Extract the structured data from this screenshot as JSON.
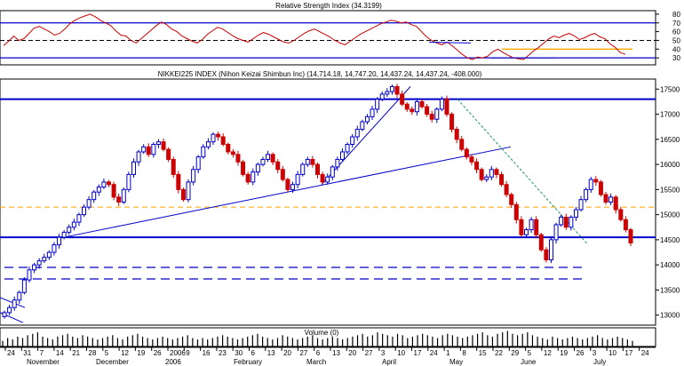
{
  "chart_data": [
    {
      "panel": "rsi",
      "type": "line",
      "title": "Relative Strength Index (34.3199)",
      "yticks": [
        30,
        40,
        50,
        60,
        70,
        80
      ],
      "ylim": [
        22,
        84
      ],
      "levels": [
        {
          "value": 70,
          "style": "solid",
          "color": "#0000cc"
        },
        {
          "value": 50,
          "style": "dashed",
          "color": "#000000"
        },
        {
          "value": 30,
          "style": "solid",
          "color": "#0000cc"
        },
        {
          "value": 40,
          "style": "solid",
          "color": "#ffa500"
        }
      ],
      "series": [
        {
          "color": "#cc0000",
          "values": [
            44,
            49,
            55,
            50,
            52,
            58,
            64,
            66,
            63,
            60,
            56,
            58,
            63,
            69,
            73,
            76,
            78,
            80,
            77,
            73,
            70,
            67,
            61,
            56,
            55,
            50,
            47,
            52,
            57,
            62,
            67,
            71,
            68,
            63,
            60,
            55,
            52,
            49,
            47,
            51,
            57,
            61,
            65,
            63,
            59,
            55,
            52,
            50,
            48,
            52,
            56,
            59,
            57,
            54,
            51,
            48,
            47,
            50,
            54,
            58,
            61,
            63,
            60,
            57,
            54,
            50,
            47,
            45,
            49,
            53,
            57,
            60,
            63,
            66,
            69,
            71,
            73,
            72,
            70,
            71,
            68,
            66,
            60,
            54,
            50,
            47,
            45,
            48,
            44,
            39,
            34,
            30,
            28,
            31,
            30,
            32,
            37,
            40,
            36,
            33,
            30,
            29,
            28,
            33,
            38,
            42,
            47,
            52,
            55,
            53,
            56,
            58,
            55,
            51,
            53,
            56,
            58,
            54,
            52,
            46,
            42,
            36,
            34
          ]
        }
      ]
    },
    {
      "panel": "price",
      "type": "candlestick",
      "title": "NIKKEI225 INDEX (Nihon Keizai Shimbun Inc) (14,714.18, 14,747.20, 14,437.24, 14,437.24, -408.000)",
      "yticks": [
        13000,
        13500,
        14000,
        14500,
        15000,
        15500,
        16000,
        16500,
        17000,
        17500
      ],
      "ylim": [
        12800,
        17700
      ],
      "xlabels_days": [
        "24",
        "31",
        "7",
        "14",
        "21",
        "28",
        "5",
        "12",
        "19",
        "26",
        "2006",
        "9",
        "16",
        "23",
        "30",
        "6",
        "13",
        "20",
        "27",
        "6",
        "13",
        "20",
        "27",
        "3",
        "10",
        "17",
        "24",
        "1",
        "8",
        "15",
        "22",
        "29",
        "5",
        "12",
        "19",
        "26",
        "3",
        "10",
        "17",
        "24"
      ],
      "xlabels_months": [
        "November",
        "December",
        "2006",
        "February",
        "March",
        "April",
        "May",
        "June",
        "July"
      ],
      "values_close": [
        13050,
        13150,
        13300,
        13450,
        13700,
        13900,
        14000,
        14080,
        14150,
        14250,
        14400,
        14550,
        14650,
        14750,
        14850,
        15000,
        15150,
        15300,
        15450,
        15550,
        15650,
        15600,
        15350,
        15250,
        15500,
        15800,
        16050,
        16250,
        16350,
        16200,
        16400,
        16450,
        16300,
        16100,
        15800,
        15500,
        15300,
        15650,
        15900,
        16150,
        16350,
        16450,
        16600,
        16550,
        16400,
        16250,
        16200,
        16050,
        15800,
        15650,
        15850,
        16000,
        16100,
        16200,
        16050,
        15900,
        15700,
        15500,
        15600,
        15800,
        16000,
        16100,
        16000,
        15800,
        15650,
        15750,
        15950,
        16100,
        16250,
        16400,
        16550,
        16700,
        16850,
        16950,
        17100,
        17300,
        17400,
        17450,
        17550,
        17400,
        17200,
        17100,
        17050,
        17250,
        17150,
        17000,
        16900,
        17100,
        17300,
        17000,
        16700,
        16500,
        16300,
        16150,
        16050,
        15900,
        15700,
        15750,
        15900,
        15800,
        15600,
        15400,
        15200,
        14900,
        14600,
        14700,
        14900,
        14600,
        14300,
        14100,
        14500,
        14800,
        14950,
        14750,
        14950,
        15100,
        15300,
        15500,
        15700,
        15650,
        15400,
        15250,
        15350,
        15100,
        14900,
        14700,
        14437
      ]
    },
    {
      "panel": "volume",
      "type": "bar",
      "title": "Volume (0)",
      "values": [
        4,
        6,
        5,
        7,
        6,
        8,
        9,
        10,
        7,
        6,
        5,
        7,
        8,
        9,
        7,
        6,
        8,
        7,
        6,
        5,
        6,
        7,
        8,
        6,
        5,
        7,
        8,
        9,
        7,
        6,
        5,
        6,
        7,
        6,
        5,
        6,
        7,
        8,
        6,
        5,
        6,
        5,
        6,
        7,
        8,
        7,
        6,
        5,
        6,
        7,
        8,
        9,
        7,
        6,
        5,
        6,
        8,
        7,
        6,
        5,
        6,
        7,
        8,
        6,
        5,
        6,
        7,
        6,
        5,
        6,
        7,
        8,
        9,
        7,
        8,
        10,
        9,
        8,
        7,
        9,
        8,
        6,
        7,
        8,
        9,
        8,
        7,
        6,
        8,
        9,
        8,
        7,
        6,
        7,
        8,
        9,
        10,
        8,
        7,
        9,
        10,
        11,
        9,
        8,
        9,
        10,
        8,
        7,
        6,
        5,
        7,
        6,
        5,
        6,
        7,
        6,
        5,
        6,
        7,
        8,
        6,
        5,
        6,
        7,
        6,
        5,
        4
      ]
    }
  ],
  "colors": {
    "up": "#0000cc",
    "down": "#cc0000",
    "support": "#0000cc",
    "resistance": "#ffa500"
  }
}
